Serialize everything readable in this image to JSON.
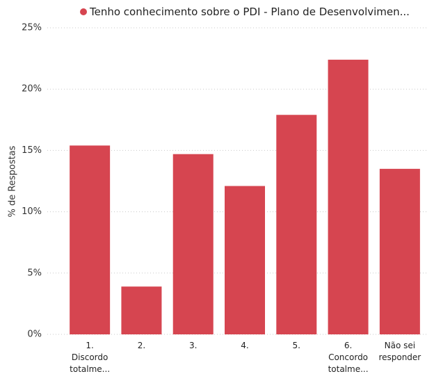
{
  "chart_data": {
    "type": "bar",
    "y_label": "% de Respostas",
    "series": [
      {
        "name": "Tenho conhecimento sobre o PDI - Plano de Desenvolvimen...",
        "color": "#d64550",
        "values": [
          15.4,
          3.9,
          14.7,
          12.1,
          17.9,
          22.4,
          13.5
        ]
      }
    ],
    "categories": [
      "1. Discordo totalme...",
      "2.",
      "3.",
      "4.",
      "5.",
      "6. Concordo totalme...",
      "Não sei responder"
    ],
    "ylim": [
      0,
      25
    ],
    "yticks": [
      {
        "value": 0,
        "label": "0%"
      },
      {
        "value": 5,
        "label": "5%"
      },
      {
        "value": 10,
        "label": "10%"
      },
      {
        "value": 15,
        "label": "15%"
      },
      {
        "value": 20,
        "label": "20%"
      },
      {
        "value": 25,
        "label": "25%"
      }
    ],
    "grid": true
  }
}
